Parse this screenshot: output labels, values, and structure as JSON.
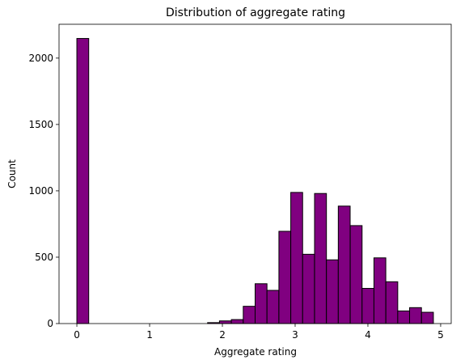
{
  "chart_data": {
    "type": "bar",
    "title": "Distribution of aggregate rating",
    "xlabel": "Aggregate rating",
    "ylabel": "Count",
    "xlim": [
      -0.245,
      5.145
    ],
    "ylim": [
      0,
      2255
    ],
    "x_ticks": [
      0,
      1,
      2,
      3,
      4,
      5
    ],
    "y_ticks": [
      0,
      500,
      1000,
      1500,
      2000
    ],
    "grid": false,
    "bin_width": 0.163,
    "bar_color": "#800080",
    "edge_color": "#000000",
    "bins": [
      {
        "x0": 0.0,
        "count": 2148
      },
      {
        "x0": 0.163,
        "count": 0
      },
      {
        "x0": 0.327,
        "count": 0
      },
      {
        "x0": 0.49,
        "count": 0
      },
      {
        "x0": 0.653,
        "count": 0
      },
      {
        "x0": 0.817,
        "count": 0
      },
      {
        "x0": 0.98,
        "count": 0
      },
      {
        "x0": 1.143,
        "count": 0
      },
      {
        "x0": 1.307,
        "count": 0
      },
      {
        "x0": 1.47,
        "count": 0
      },
      {
        "x0": 1.633,
        "count": 0
      },
      {
        "x0": 1.797,
        "count": 7
      },
      {
        "x0": 1.96,
        "count": 20
      },
      {
        "x0": 2.123,
        "count": 30
      },
      {
        "x0": 2.287,
        "count": 130
      },
      {
        "x0": 2.45,
        "count": 300
      },
      {
        "x0": 2.613,
        "count": 250
      },
      {
        "x0": 2.777,
        "count": 695
      },
      {
        "x0": 2.94,
        "count": 988
      },
      {
        "x0": 3.103,
        "count": 522
      },
      {
        "x0": 3.267,
        "count": 980
      },
      {
        "x0": 3.43,
        "count": 480
      },
      {
        "x0": 3.593,
        "count": 885
      },
      {
        "x0": 3.757,
        "count": 738
      },
      {
        "x0": 3.92,
        "count": 265
      },
      {
        "x0": 4.083,
        "count": 495
      },
      {
        "x0": 4.247,
        "count": 315
      },
      {
        "x0": 4.41,
        "count": 95
      },
      {
        "x0": 4.573,
        "count": 120
      },
      {
        "x0": 4.737,
        "count": 85
      }
    ]
  }
}
